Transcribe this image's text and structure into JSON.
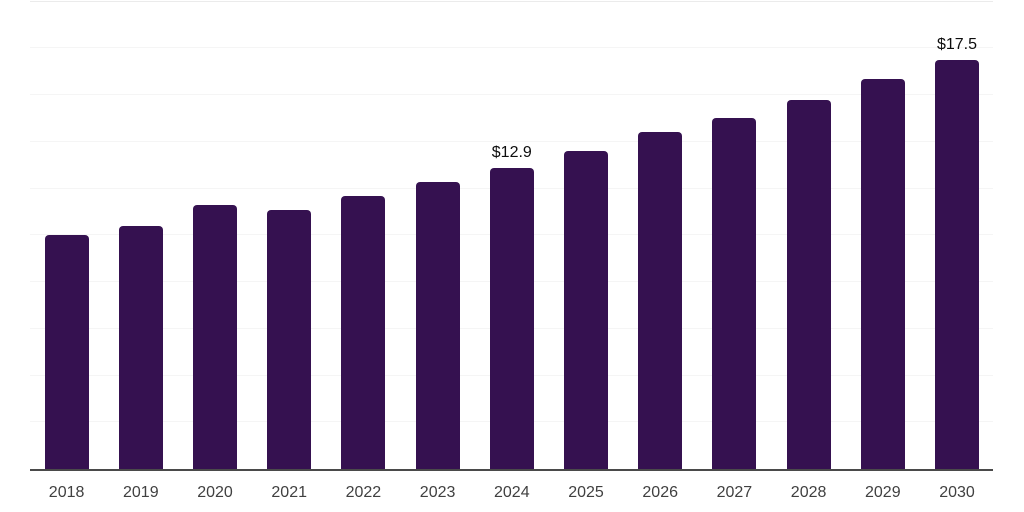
{
  "chart_data": {
    "type": "bar",
    "title": "",
    "xlabel": "",
    "ylabel": "",
    "categories": [
      "2018",
      "2019",
      "2020",
      "2021",
      "2022",
      "2023",
      "2024",
      "2025",
      "2026",
      "2027",
      "2028",
      "2029",
      "2030"
    ],
    "values": [
      10.0,
      10.4,
      11.3,
      11.1,
      11.7,
      12.3,
      12.9,
      13.6,
      14.4,
      15.0,
      15.8,
      16.7,
      17.5
    ],
    "value_labels": [
      "",
      "",
      "",
      "",
      "",
      "",
      "$12.9",
      "",
      "",
      "",
      "",
      "",
      "$17.5"
    ],
    "ylim": [
      0,
      20
    ],
    "grid_step": 2,
    "grid": "horizontal",
    "y_tick_labels_shown": false,
    "legend": false,
    "colors": {
      "bar": "#351150",
      "axis": "#4a4a4a",
      "gridline": "#f5f5f5",
      "top_gridline": "#ebebeb",
      "tick_label": "#404040",
      "value_label": "#0d0d0d",
      "background": "#ffffff"
    }
  }
}
